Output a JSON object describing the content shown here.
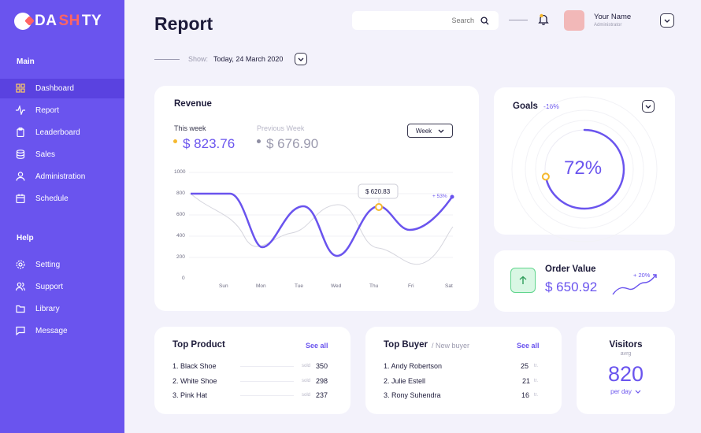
{
  "brand": {
    "logo_a": "DA",
    "logo_b": "SH",
    "logo_c": "TY"
  },
  "sidebar": {
    "main_heading": "Main",
    "main_items": [
      {
        "label": "Dashboard"
      },
      {
        "label": "Report"
      },
      {
        "label": "Leaderboard"
      },
      {
        "label": "Sales"
      },
      {
        "label": "Administration"
      },
      {
        "label": "Schedule"
      }
    ],
    "help_heading": "Help",
    "help_items": [
      {
        "label": "Setting"
      },
      {
        "label": "Support"
      },
      {
        "label": "Library"
      },
      {
        "label": "Message"
      }
    ]
  },
  "header": {
    "title": "Report",
    "search_placeholder": "Search",
    "user_name": "Your Name",
    "user_role": "Administrator"
  },
  "filter": {
    "show_label": "Show:",
    "date": "Today, 24 March 2020"
  },
  "revenue": {
    "title": "Revenue",
    "this_week_label": "This week",
    "this_week_value": "$ 823.76",
    "prev_week_label": "Previous Week",
    "prev_week_value": "$ 676.90",
    "period_button": "Week",
    "tooltip": "$ 620.83",
    "change": "+ 53%",
    "colors": {
      "this_week": "#6a54ee",
      "previous": "#cfcfd8",
      "accent": "#f5b82e"
    },
    "chart_data": {
      "type": "line",
      "x": [
        "Sun",
        "Mon",
        "Tue",
        "Wed",
        "Thu",
        "Fri",
        "Sat"
      ],
      "yticks": [
        0,
        200,
        400,
        600,
        800,
        1000
      ],
      "ylim": [
        0,
        1000
      ],
      "grid": true
    }
  },
  "goals": {
    "title": "Goals",
    "change": "-16%",
    "percent": "72%",
    "progress": 72
  },
  "order_value": {
    "title": "Order Value",
    "value": "$ 650.92",
    "change": "+ 20%"
  },
  "top_product": {
    "title": "Top Product",
    "see_all": "See all",
    "items": [
      {
        "name": "1. Black Shoe",
        "unit": "sold",
        "value": "350"
      },
      {
        "name": "2. White Shoe",
        "unit": "sold",
        "value": "298"
      },
      {
        "name": "3. Pink Hat",
        "unit": "sold",
        "value": "237"
      }
    ]
  },
  "top_buyer": {
    "title": "Top Buyer",
    "subtitle": "/ New buyer",
    "see_all": "See all",
    "items": [
      {
        "name": "1. Andy Robertson",
        "unit": "tr.",
        "value": "25"
      },
      {
        "name": "2. Julie Estell",
        "unit": "tr.",
        "value": "21"
      },
      {
        "name": "3. Rony Suhendra",
        "unit": "tr.",
        "value": "16"
      }
    ]
  },
  "visitors": {
    "title": "Visitors",
    "subtitle": "avrg",
    "value": "820",
    "period": "per day"
  }
}
